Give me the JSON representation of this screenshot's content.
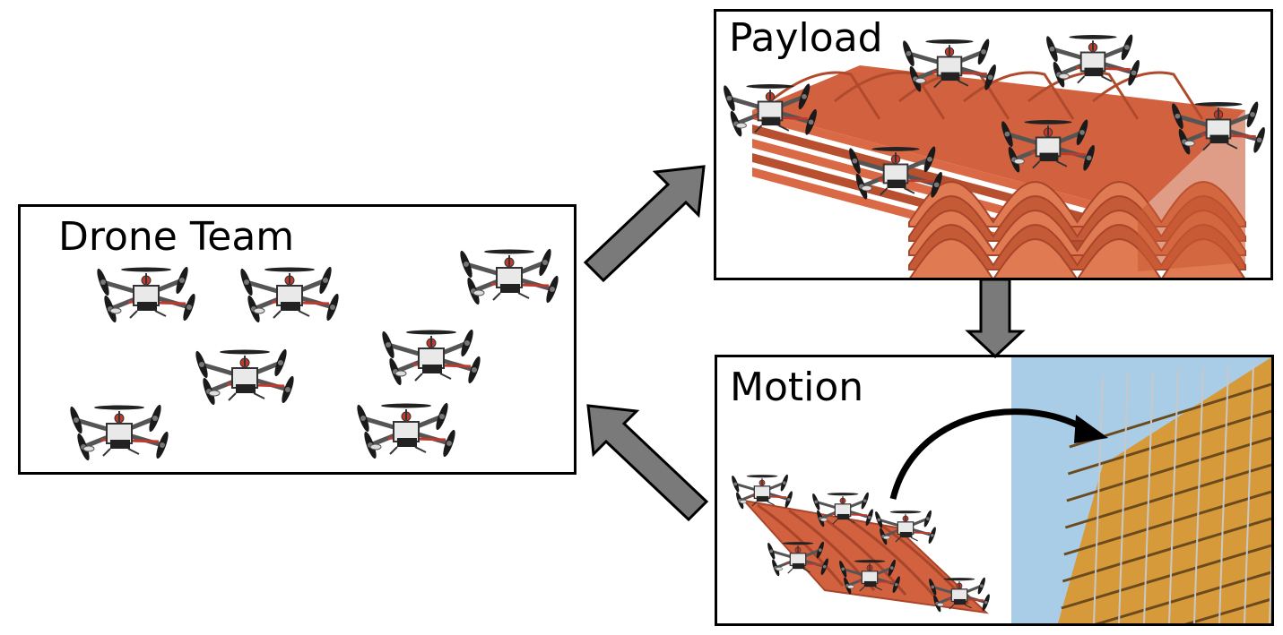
{
  "panels": {
    "drone_team": {
      "title": "Drone Team"
    },
    "payload": {
      "title": "Payload"
    },
    "motion": {
      "title": "Motion"
    }
  },
  "colors": {
    "tile": "#d2623f",
    "tile_dark": "#a8452a",
    "arrow_fill": "#7a7a7a",
    "sky": "#a9cde6",
    "scaffold": "#d79a3a"
  },
  "icons": [
    "quadcopter-drone-icon",
    "roof-tile-stack-icon",
    "scaffolding-building-photo",
    "curved-arrow-icon",
    "block-arrow-icon"
  ]
}
